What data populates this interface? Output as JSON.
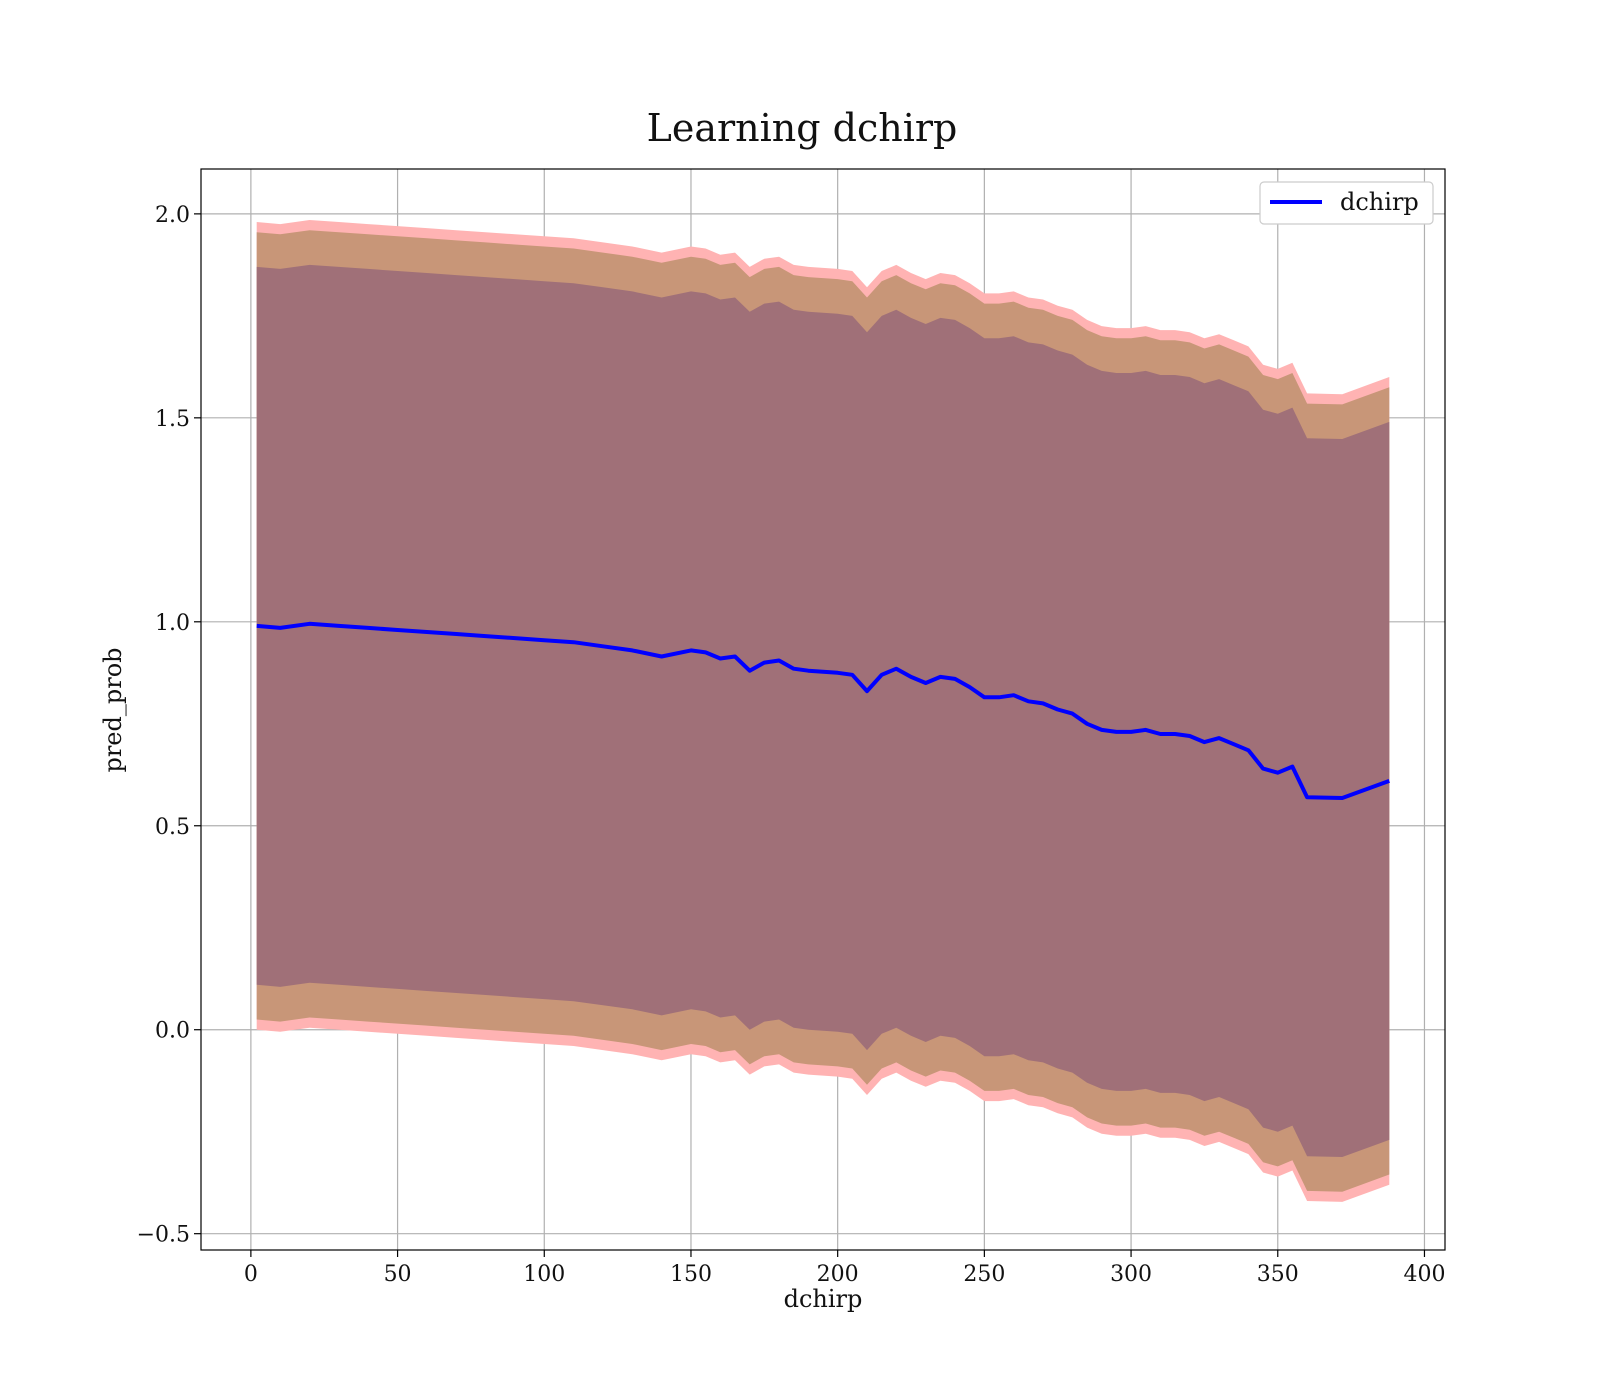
{
  "chart_data": {
    "type": "area",
    "title": "Learning dchirp",
    "xlabel": "dchirp",
    "ylabel": "pred_prob",
    "xlim": [
      -17,
      407
    ],
    "ylim": [
      -0.54,
      2.11
    ],
    "xticks": [
      0,
      50,
      100,
      150,
      200,
      250,
      300,
      350,
      400
    ],
    "yticks": [
      -0.5,
      0.0,
      0.5,
      1.0,
      1.5,
      2.0
    ],
    "xtick_labels": [
      "0",
      "50",
      "100",
      "150",
      "200",
      "250",
      "300",
      "350",
      "400"
    ],
    "ytick_labels": [
      "−0.5",
      "0.0",
      "0.5",
      "1.0",
      "1.5",
      "2.0"
    ],
    "grid": true,
    "legend": {
      "position": "top-right",
      "entries": [
        "dchirp"
      ]
    },
    "colors": {
      "line": "#0000ff",
      "band_outer": "#ffb3b3",
      "band_middle": "#c89678",
      "band_inner": "#a07078"
    },
    "x": [
      2,
      10,
      20,
      30,
      40,
      50,
      60,
      70,
      80,
      90,
      100,
      110,
      120,
      130,
      140,
      150,
      155,
      160,
      165,
      170,
      175,
      180,
      185,
      190,
      200,
      205,
      210,
      215,
      220,
      225,
      230,
      235,
      240,
      245,
      250,
      255,
      260,
      265,
      270,
      275,
      280,
      285,
      290,
      295,
      300,
      305,
      310,
      315,
      320,
      325,
      330,
      335,
      340,
      345,
      350,
      355,
      360,
      372,
      388
    ],
    "series": [
      {
        "name": "dchirp",
        "values": [
          0.99,
          0.985,
          0.995,
          0.99,
          0.985,
          0.98,
          0.975,
          0.97,
          0.965,
          0.96,
          0.955,
          0.95,
          0.94,
          0.93,
          0.915,
          0.93,
          0.925,
          0.91,
          0.915,
          0.88,
          0.9,
          0.905,
          0.885,
          0.88,
          0.875,
          0.87,
          0.83,
          0.87,
          0.885,
          0.865,
          0.85,
          0.865,
          0.86,
          0.84,
          0.815,
          0.815,
          0.82,
          0.805,
          0.8,
          0.785,
          0.775,
          0.75,
          0.735,
          0.73,
          0.73,
          0.735,
          0.725,
          0.725,
          0.72,
          0.705,
          0.715,
          0.7,
          0.685,
          0.64,
          0.63,
          0.645,
          0.57,
          0.568,
          0.61
        ]
      }
    ],
    "bands": [
      {
        "level": "outer",
        "half_width": [
          0.99,
          0.99,
          0.99,
          0.99,
          0.99,
          0.99,
          0.99,
          0.99,
          0.99,
          0.99,
          0.99,
          0.99,
          0.99,
          0.99,
          0.99,
          0.99,
          0.99,
          0.99,
          0.99,
          0.99,
          0.99,
          0.99,
          0.99,
          0.99,
          0.99,
          0.99,
          0.99,
          0.99,
          0.99,
          0.99,
          0.99,
          0.99,
          0.99,
          0.99,
          0.99,
          0.99,
          0.99,
          0.99,
          0.99,
          0.99,
          0.99,
          0.99,
          0.99,
          0.99,
          0.99,
          0.99,
          0.99,
          0.99,
          0.99,
          0.99,
          0.99,
          0.99,
          0.99,
          0.99,
          0.99,
          0.99,
          0.99,
          0.99,
          0.99
        ]
      },
      {
        "level": "middle",
        "half_width": [
          0.965,
          0.965,
          0.965,
          0.965,
          0.965,
          0.965,
          0.965,
          0.965,
          0.965,
          0.965,
          0.965,
          0.965,
          0.965,
          0.965,
          0.965,
          0.965,
          0.965,
          0.965,
          0.965,
          0.965,
          0.965,
          0.965,
          0.965,
          0.965,
          0.965,
          0.965,
          0.965,
          0.965,
          0.965,
          0.965,
          0.965,
          0.965,
          0.965,
          0.965,
          0.965,
          0.965,
          0.965,
          0.965,
          0.965,
          0.965,
          0.965,
          0.965,
          0.965,
          0.965,
          0.965,
          0.965,
          0.965,
          0.965,
          0.965,
          0.965,
          0.965,
          0.965,
          0.965,
          0.965,
          0.965,
          0.965,
          0.965,
          0.965,
          0.965
        ]
      },
      {
        "level": "inner",
        "half_width": [
          0.88,
          0.88,
          0.88,
          0.88,
          0.88,
          0.88,
          0.88,
          0.88,
          0.88,
          0.88,
          0.88,
          0.88,
          0.88,
          0.88,
          0.88,
          0.88,
          0.88,
          0.88,
          0.88,
          0.88,
          0.88,
          0.88,
          0.88,
          0.88,
          0.88,
          0.88,
          0.88,
          0.88,
          0.88,
          0.88,
          0.88,
          0.88,
          0.88,
          0.88,
          0.88,
          0.88,
          0.88,
          0.88,
          0.88,
          0.88,
          0.88,
          0.88,
          0.88,
          0.88,
          0.88,
          0.88,
          0.88,
          0.88,
          0.88,
          0.88,
          0.88,
          0.88,
          0.88,
          0.88,
          0.88,
          0.88,
          0.88,
          0.88,
          0.88
        ]
      }
    ]
  }
}
